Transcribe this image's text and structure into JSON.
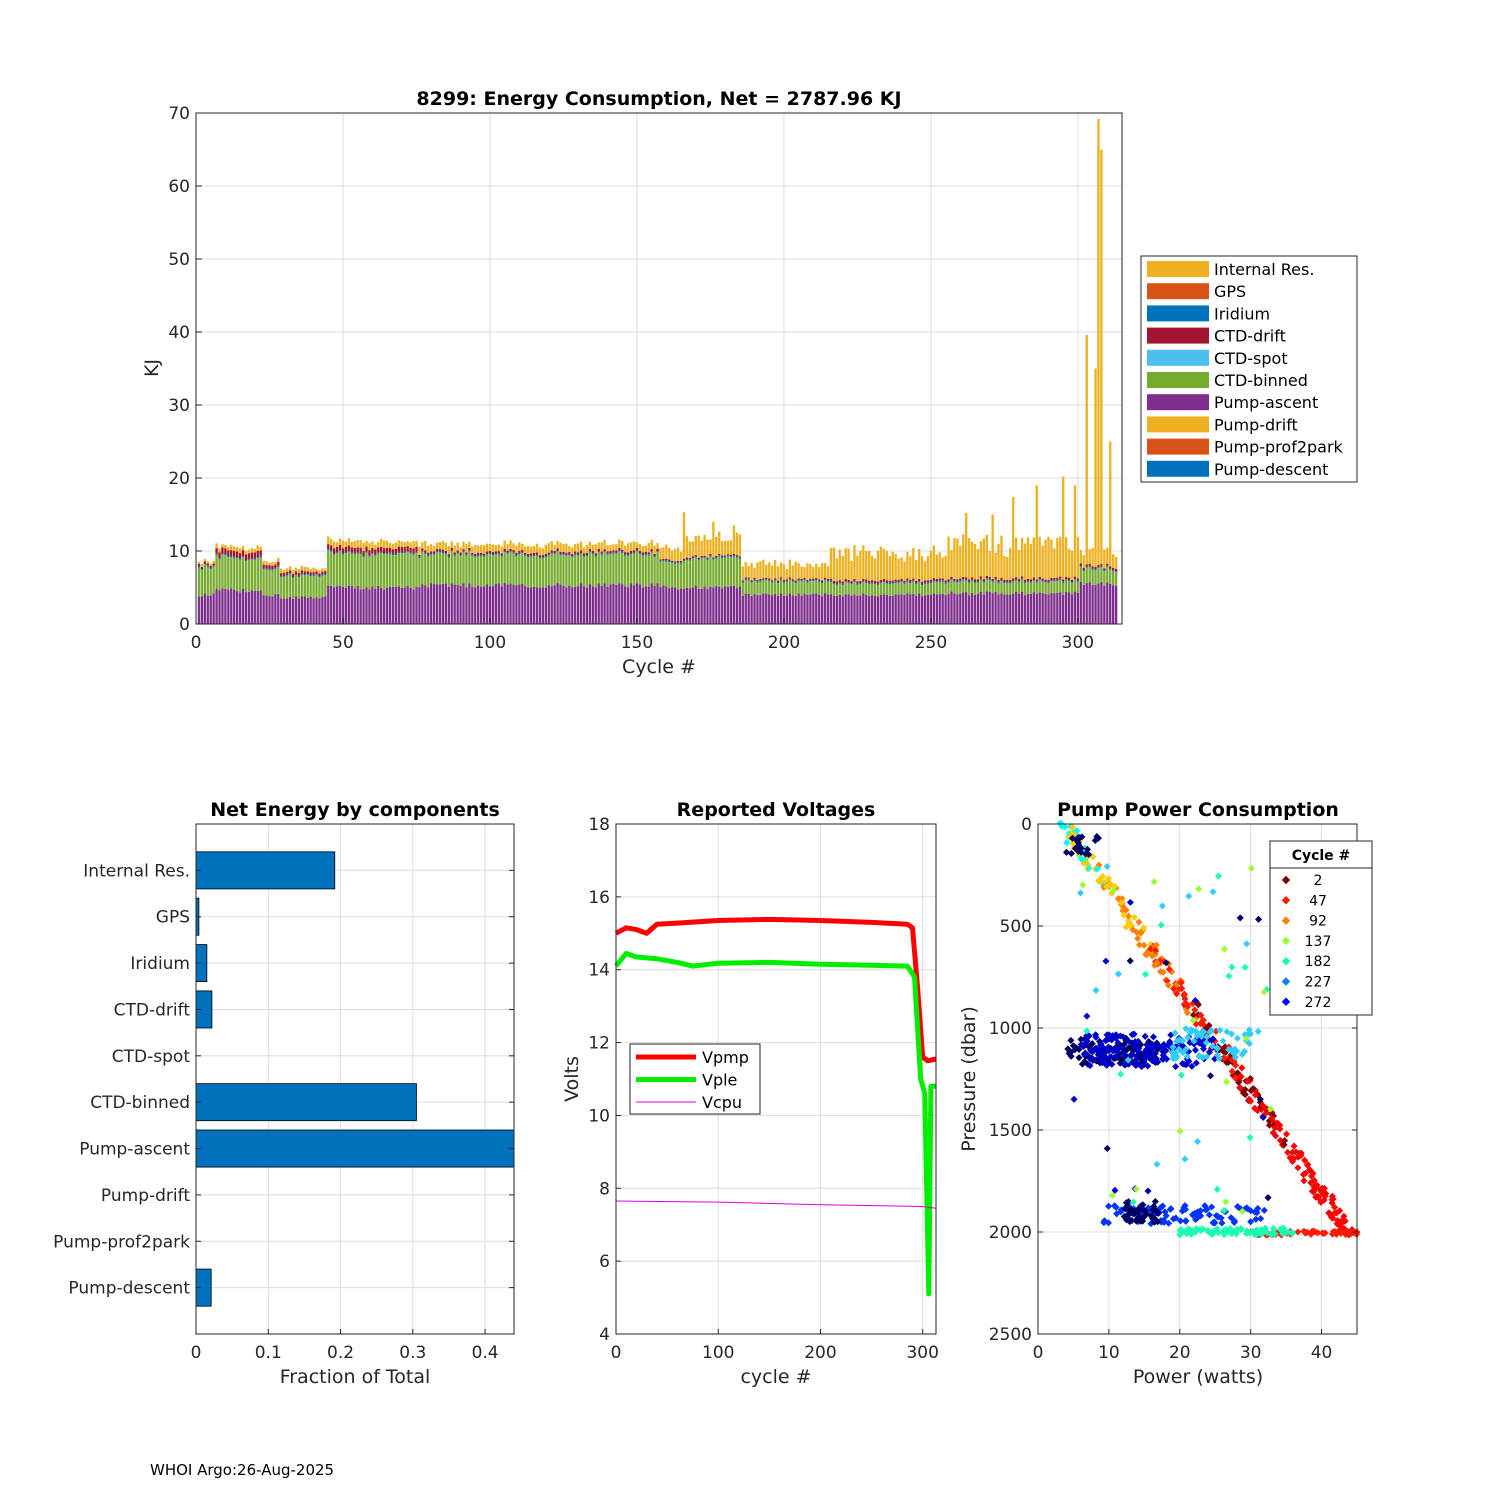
{
  "figure": {
    "footer": "WHOI Argo:26-Aug-2025"
  },
  "chart_data": [
    {
      "id": "energy",
      "type": "bar",
      "stacked": true,
      "title": "8299: Energy Consumption,  Net = 2787.96 KJ",
      "xlabel": "Cycle #",
      "ylabel": "KJ",
      "xlim": [
        0,
        315
      ],
      "ylim": [
        0,
        70
      ],
      "xticks": [
        0,
        50,
        100,
        150,
        200,
        250,
        300
      ],
      "yticks": [
        0,
        10,
        20,
        30,
        40,
        50,
        60,
        70
      ],
      "legend_position": "outside-right",
      "legend": [
        "Internal Res.",
        "GPS",
        "Iridium",
        "CTD-drift",
        "CTD-spot",
        "CTD-binned",
        "Pump-ascent",
        "Pump-drift",
        "Pump-prof2park",
        "Pump-descent"
      ],
      "colors": {
        "Internal Res.": "#EDB120",
        "GPS": "#D95319",
        "Iridium": "#0072BD",
        "CTD-drift": "#A2142F",
        "CTD-spot": "#4DBEEE",
        "CTD-binned": "#77AC30",
        "Pump-ascent": "#7E2F8E",
        "Pump-drift": "#EDB120",
        "Pump-prof2park": "#D95319",
        "Pump-descent": "#0072BD"
      },
      "segments": [
        {
          "from": 1,
          "to": 6,
          "pump_ascent": 4.0,
          "ctd_binned": 3.8,
          "ctd_drift": 0.3,
          "internal": 0.4
        },
        {
          "from": 7,
          "to": 22,
          "pump_ascent": 4.6,
          "ctd_binned": 4.4,
          "ctd_drift": 0.8,
          "internal": 0.6
        },
        {
          "from": 23,
          "to": 28,
          "pump_ascent": 4.0,
          "ctd_binned": 3.6,
          "ctd_drift": 0.5,
          "internal": 0.5
        },
        {
          "from": 29,
          "to": 44,
          "pump_ascent": 3.6,
          "ctd_binned": 3.0,
          "ctd_drift": 0.4,
          "internal": 0.5
        },
        {
          "from": 45,
          "to": 75,
          "pump_ascent": 5.0,
          "ctd_binned": 4.6,
          "ctd_drift": 0.7,
          "internal": 0.9
        },
        {
          "from": 76,
          "to": 157,
          "pump_ascent": 5.3,
          "ctd_binned": 4.2,
          "ctd_drift": 0.3,
          "internal": 1.0
        },
        {
          "from": 158,
          "to": 165,
          "pump_ascent": 5.0,
          "ctd_binned": 3.4,
          "ctd_drift": 0.2,
          "internal": 1.6
        },
        {
          "from": 166,
          "to": 185,
          "pump_ascent": 5.0,
          "ctd_binned": 4.0,
          "ctd_drift": 0.2,
          "internal": 2.5
        },
        {
          "from": 186,
          "to": 215,
          "pump_ascent": 4.0,
          "ctd_binned": 1.8,
          "ctd_drift": 0.2,
          "internal": 2.0
        },
        {
          "from": 216,
          "to": 255,
          "pump_ascent": 4.0,
          "ctd_binned": 1.6,
          "ctd_drift": 0.3,
          "internal": 3.6
        },
        {
          "from": 256,
          "to": 300,
          "pump_ascent": 4.2,
          "ctd_binned": 1.6,
          "ctd_drift": 0.3,
          "internal": 4.5
        },
        {
          "from": 301,
          "to": 313,
          "pump_ascent": 5.5,
          "ctd_binned": 2.0,
          "ctd_drift": 0.3,
          "internal": 2.0
        }
      ],
      "spikes": [
        {
          "cycle": 303,
          "total": 39.6
        },
        {
          "cycle": 306,
          "total": 35.0
        },
        {
          "cycle": 307,
          "total": 69.2
        },
        {
          "cycle": 308,
          "total": 65.0
        },
        {
          "cycle": 311,
          "total": 25.0
        },
        {
          "cycle": 166,
          "total": 15.3
        },
        {
          "cycle": 176,
          "total": 14.0
        },
        {
          "cycle": 183,
          "total": 13.5
        },
        {
          "cycle": 262,
          "total": 15.2
        },
        {
          "cycle": 271,
          "total": 15.0
        },
        {
          "cycle": 278,
          "total": 17.4
        },
        {
          "cycle": 286,
          "total": 19.0
        },
        {
          "cycle": 295,
          "total": 20.2
        },
        {
          "cycle": 299,
          "total": 19.0
        }
      ]
    },
    {
      "id": "components",
      "type": "bar",
      "orientation": "horizontal",
      "title": "Net Energy by components",
      "xlabel": "Fraction of Total",
      "xlim": [
        0,
        0.44
      ],
      "xticks": [
        0,
        0.1,
        0.2,
        0.3,
        0.4
      ],
      "xtick_labels": [
        "0",
        "0.1",
        "0.2",
        "0.3",
        "0.4"
      ],
      "color": "#0072BD",
      "categories": [
        "Internal Res.",
        "GPS",
        "Iridium",
        "CTD-drift",
        "CTD-spot",
        "CTD-binned",
        "Pump-ascent",
        "Pump-drift",
        "Pump-prof2park",
        "Pump-descent"
      ],
      "values": [
        0.192,
        0.004,
        0.015,
        0.022,
        0.0,
        0.305,
        0.44,
        0.0,
        0.0,
        0.021
      ]
    },
    {
      "id": "voltages",
      "type": "line",
      "title": "Reported Voltages",
      "xlabel": "cycle #",
      "ylabel": "Volts",
      "xlim": [
        0,
        313
      ],
      "ylim": [
        4,
        18
      ],
      "xticks": [
        0,
        100,
        200,
        300
      ],
      "yticks": [
        4,
        6,
        8,
        10,
        12,
        14,
        16,
        18
      ],
      "legend_position": "middle-left",
      "series": [
        {
          "name": "Vpmp",
          "color": "#FF0000",
          "width": 5,
          "points": [
            [
              0,
              15.0
            ],
            [
              10,
              15.15
            ],
            [
              20,
              15.1
            ],
            [
              30,
              15.0
            ],
            [
              40,
              15.25
            ],
            [
              60,
              15.28
            ],
            [
              100,
              15.35
            ],
            [
              150,
              15.38
            ],
            [
              200,
              15.35
            ],
            [
              250,
              15.3
            ],
            [
              285,
              15.25
            ],
            [
              290,
              15.15
            ],
            [
              295,
              13.5
            ],
            [
              300,
              11.6
            ],
            [
              305,
              11.5
            ],
            [
              313,
              11.55
            ]
          ]
        },
        {
          "name": "Vple",
          "color": "#00EE00",
          "width": 5,
          "points": [
            [
              0,
              14.1
            ],
            [
              10,
              14.45
            ],
            [
              20,
              14.35
            ],
            [
              40,
              14.3
            ],
            [
              60,
              14.2
            ],
            [
              75,
              14.1
            ],
            [
              100,
              14.18
            ],
            [
              150,
              14.2
            ],
            [
              200,
              14.15
            ],
            [
              250,
              14.12
            ],
            [
              285,
              14.1
            ],
            [
              292,
              13.8
            ],
            [
              298,
              11.0
            ],
            [
              302,
              10.6
            ],
            [
              306,
              5.1
            ],
            [
              308,
              10.8
            ],
            [
              313,
              10.8
            ]
          ]
        },
        {
          "name": "Vcpu",
          "color": "#E000E0",
          "width": 1,
          "points": [
            [
              0,
              7.65
            ],
            [
              100,
              7.62
            ],
            [
              200,
              7.55
            ],
            [
              300,
              7.5
            ],
            [
              313,
              7.45
            ]
          ]
        }
      ]
    },
    {
      "id": "pump_power",
      "type": "scatter",
      "title": "Pump Power Consumption",
      "xlabel": "Power (watts)",
      "ylabel": "Pressure (dbar)",
      "xlim": [
        0,
        45
      ],
      "ylim": [
        0,
        2500
      ],
      "y_reversed": true,
      "xticks": [
        0,
        10,
        20,
        30,
        40
      ],
      "yticks": [
        0,
        500,
        1000,
        1500,
        2000,
        2500
      ],
      "legend_title": "Cycle #",
      "legend_position": "top-right",
      "legend": [
        {
          "label": "2",
          "color": "#800000"
        },
        {
          "label": "47",
          "color": "#FF1A00"
        },
        {
          "label": "92",
          "color": "#FF8000"
        },
        {
          "label": "137",
          "color": "#99FF33"
        },
        {
          "label": "182",
          "color": "#1AFFB3"
        },
        {
          "label": "227",
          "color": "#0080FF"
        },
        {
          "label": "272",
          "color": "#0000FF"
        }
      ],
      "descent_line": {
        "p0": [
          3.5,
          0
        ],
        "p1": [
          44,
          2010
        ]
      },
      "clusters": [
        {
          "color": "#000066",
          "x": [
            4,
            17
          ],
          "y": [
            1050,
            1180
          ],
          "n": 120
        },
        {
          "color": "#0000CC",
          "x": [
            6,
            25
          ],
          "y": [
            1030,
            1190
          ],
          "n": 160
        },
        {
          "color": "#0033FF",
          "x": [
            9,
            32
          ],
          "y": [
            1870,
            1960
          ],
          "n": 90
        },
        {
          "color": "#000066",
          "x": [
            12,
            17
          ],
          "y": [
            1850,
            1960
          ],
          "n": 50
        },
        {
          "color": "#1AFFB3",
          "x": [
            20,
            36
          ],
          "y": [
            1980,
            2015
          ],
          "n": 80
        },
        {
          "color": "#33CCFF",
          "x": [
            19,
            30
          ],
          "y": [
            1000,
            1150
          ],
          "n": 60
        },
        {
          "color": "#000066",
          "x": [
            4,
            9
          ],
          "y": [
            60,
            150
          ],
          "n": 20
        }
      ]
    }
  ]
}
